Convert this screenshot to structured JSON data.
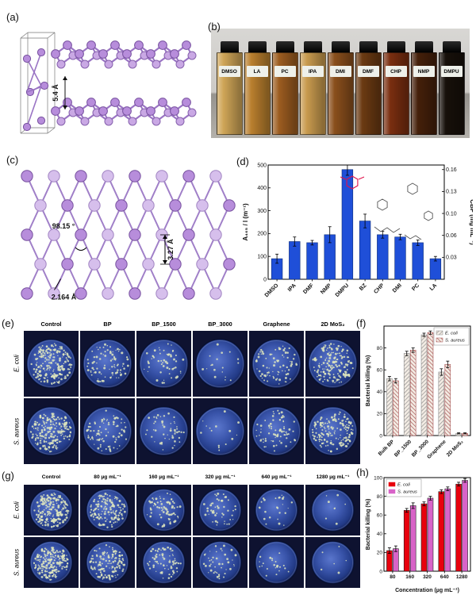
{
  "figure": {
    "panel_labels": {
      "a": "(a)",
      "b": "(b)",
      "c": "(c)",
      "d": "(d)",
      "e": "(e)",
      "f": "(f)",
      "g": "(g)",
      "h": "(h)"
    }
  },
  "panel_a": {
    "layer_spacing": "5.4 Å"
  },
  "panel_b": {
    "vials": [
      {
        "label": "DMSO",
        "color": "#cfa557"
      },
      {
        "label": "LA",
        "color": "#b97f2e"
      },
      {
        "label": "PC",
        "color": "#9c5c20"
      },
      {
        "label": "IPA",
        "color": "#c89a4e"
      },
      {
        "label": "DMI",
        "color": "#8a4f1c"
      },
      {
        "label": "DMF",
        "color": "#6b3a12"
      },
      {
        "label": "CHP",
        "color": "#7a2e10"
      },
      {
        "label": "NMP",
        "color": "#45200a"
      },
      {
        "label": "DMPU",
        "color": "#17100a"
      }
    ]
  },
  "panel_c": {
    "angle": "98.15 °",
    "bond_length": "2.164 Å",
    "spacing": "3.27 Å"
  },
  "panel_e": {
    "columns": [
      "Control",
      "BP",
      "BP_1500",
      "BP_3000",
      "Graphene",
      "2D MoS₂"
    ],
    "rows": [
      "E. coli",
      "S. aureus"
    ],
    "densities": [
      [
        210,
        90,
        55,
        18,
        80,
        180
      ],
      [
        200,
        85,
        50,
        15,
        75,
        170
      ]
    ]
  },
  "panel_g": {
    "columns": [
      "Control",
      "80 µg mL⁻¹",
      "160 µg mL⁻¹",
      "320 µg mL⁻¹",
      "640 µg mL⁻¹",
      "1280 µg mL⁻¹"
    ],
    "rows": [
      "E. coli",
      "S. aureus"
    ],
    "densities": [
      [
        210,
        150,
        75,
        50,
        25,
        8
      ],
      [
        200,
        140,
        70,
        45,
        22,
        6
      ]
    ]
  },
  "chart_data": [
    {
      "id": "d",
      "type": "bar",
      "categories": [
        "DMSO",
        "IPA",
        "DMF",
        "NMP",
        "DMPU",
        "BZ",
        "CHP",
        "DMI",
        "PC",
        "LA"
      ],
      "values": [
        90,
        165,
        160,
        195,
        480,
        255,
        195,
        185,
        160,
        90
      ],
      "errors": [
        20,
        20,
        10,
        35,
        25,
        30,
        15,
        12,
        12,
        10
      ],
      "title": "",
      "ylabel": "A₄₆₅ / l (m⁻¹)",
      "ylabel_right": "CBP (mg mL⁻¹)",
      "ylim": [
        0,
        500
      ],
      "yticks": [
        0,
        100,
        200,
        300,
        400,
        500
      ],
      "yticks_right": [
        "0.03",
        "0.06",
        "0.10",
        "0.13",
        "0.16"
      ],
      "bar_color": "#1f4fd8"
    },
    {
      "id": "f",
      "type": "bar",
      "categories": [
        "Bulk BP",
        "BP_1500",
        "BP_3000",
        "Graphene",
        "2D MoS₂"
      ],
      "series": [
        {
          "name": "E. coli",
          "values": [
            52,
            75,
            92,
            58,
            2
          ],
          "errors": [
            2,
            2,
            1.5,
            3,
            0.5
          ],
          "color": "#8a8a8a",
          "hatch": true
        },
        {
          "name": "S. aureus",
          "values": [
            50,
            78,
            94,
            65,
            2
          ],
          "errors": [
            2,
            2,
            1.5,
            3,
            0.5
          ],
          "color": "#a34d4d",
          "hatch": true
        }
      ],
      "ylabel": "Bacterial killing (%)",
      "ylim": [
        0,
        100
      ],
      "yticks": [
        0,
        20,
        40,
        60,
        80
      ],
      "legend_position": "top-right"
    },
    {
      "id": "h",
      "type": "bar",
      "categories": [
        "80",
        "160",
        "320",
        "640",
        "1280"
      ],
      "series": [
        {
          "name": "E. coli",
          "values": [
            22,
            65,
            72,
            85,
            93
          ],
          "errors": [
            3,
            2,
            2,
            2,
            2
          ],
          "color": "#e8000d",
          "hatch": false
        },
        {
          "name": "S. aureus",
          "values": [
            24,
            70,
            78,
            88,
            97
          ],
          "errors": [
            3,
            3,
            2,
            2,
            2
          ],
          "color": "#d863c8",
          "hatch": false
        }
      ],
      "xlabel": "Concentration (µg mL⁻¹)",
      "ylabel": "Bacterial killing (%)",
      "ylim": [
        0,
        100
      ],
      "yticks": [
        0,
        20,
        40,
        60,
        80,
        100
      ],
      "legend_position": "top-left"
    }
  ]
}
